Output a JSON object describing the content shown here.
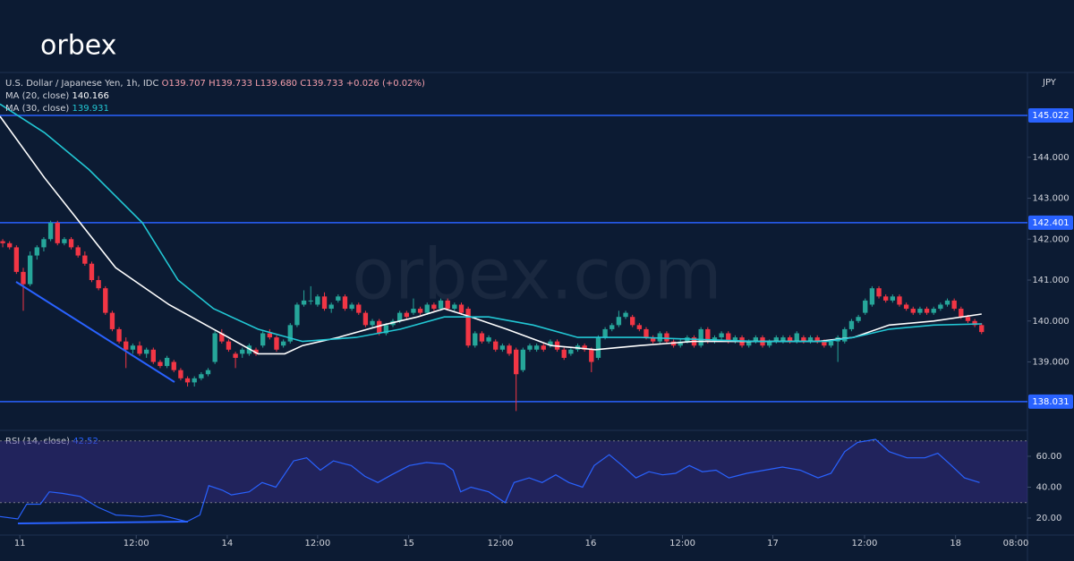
{
  "logo": "orbex",
  "watermark": "orbex.com",
  "chart_data": {
    "type": "candlestick",
    "symbol": "U.S. Dollar / Japanese Yen, 1h, IDC",
    "ohlc_labels": [
      "O139.707",
      "H139.733",
      "L139.680",
      "C139.733",
      "+0.026 (+0.02%)"
    ],
    "currency": "JPY",
    "up_color": "#26a69a",
    "down_color": "#f23645",
    "level_color": "#2962ff",
    "ylim": [
      137.35,
      146.05
    ],
    "yticks": [
      {
        "value": 139,
        "label": "139.000"
      },
      {
        "value": 140,
        "label": "140.000"
      },
      {
        "value": 141,
        "label": "141.000"
      },
      {
        "value": 142,
        "label": "142.000"
      },
      {
        "value": 143,
        "label": "143.000"
      },
      {
        "value": 144,
        "label": "144.000"
      }
    ],
    "levels": [
      145.022,
      142.401,
      138.031
    ],
    "xlim": [
      -0.4,
      149.7
    ],
    "xticks": [
      {
        "value": 2.5,
        "label": "11"
      },
      {
        "value": 19.5,
        "label": "12:00"
      },
      {
        "value": 32.8,
        "label": "14"
      },
      {
        "value": 46,
        "label": "12:00"
      },
      {
        "value": 59.3,
        "label": "15"
      },
      {
        "value": 72.7,
        "label": "12:00"
      },
      {
        "value": 85.9,
        "label": "16"
      },
      {
        "value": 99.3,
        "label": "12:00"
      },
      {
        "value": 112.5,
        "label": "17"
      },
      {
        "value": 125.9,
        "label": "12:00"
      },
      {
        "value": 139.2,
        "label": "18"
      },
      {
        "value": 148,
        "label": "08:00"
      }
    ],
    "candles": [
      [
        141.95,
        142.0,
        141.8,
        141.9
      ],
      [
        141.9,
        141.95,
        141.75,
        141.8
      ],
      [
        141.8,
        141.85,
        141.15,
        141.2
      ],
      [
        141.2,
        141.3,
        140.25,
        140.9
      ],
      [
        140.9,
        141.7,
        140.85,
        141.6
      ],
      [
        141.6,
        141.85,
        141.5,
        141.8
      ],
      [
        141.8,
        142.05,
        141.7,
        142.0
      ],
      [
        142.0,
        142.45,
        141.95,
        142.4
      ],
      [
        142.4,
        142.45,
        141.85,
        141.9
      ],
      [
        141.9,
        142.05,
        141.85,
        142.0
      ],
      [
        142.0,
        142.05,
        141.75,
        141.8
      ],
      [
        141.8,
        141.85,
        141.55,
        141.6
      ],
      [
        141.6,
        141.7,
        141.35,
        141.4
      ],
      [
        141.4,
        141.45,
        140.95,
        141.0
      ],
      [
        141.0,
        141.1,
        140.75,
        140.8
      ],
      [
        140.8,
        140.85,
        140.15,
        140.2
      ],
      [
        140.2,
        140.25,
        139.75,
        139.8
      ],
      [
        139.8,
        139.85,
        139.45,
        139.5
      ],
      [
        139.5,
        139.6,
        138.85,
        139.3
      ],
      [
        139.3,
        139.45,
        139.2,
        139.4
      ],
      [
        139.4,
        139.5,
        139.15,
        139.2
      ],
      [
        139.2,
        139.35,
        139.1,
        139.3
      ],
      [
        139.3,
        139.35,
        138.95,
        139.0
      ],
      [
        139.0,
        139.05,
        138.85,
        138.9
      ],
      [
        138.9,
        139.15,
        138.85,
        139.1
      ],
      [
        139.0,
        139.05,
        138.75,
        138.8
      ],
      [
        138.8,
        138.85,
        138.55,
        138.6
      ],
      [
        138.6,
        138.65,
        138.4,
        138.5
      ],
      [
        138.5,
        138.65,
        138.4,
        138.6
      ],
      [
        138.6,
        138.75,
        138.55,
        138.7
      ],
      [
        138.7,
        138.85,
        138.65,
        138.8
      ],
      [
        139.0,
        139.75,
        138.95,
        139.7
      ],
      [
        139.7,
        139.8,
        139.45,
        139.5
      ],
      [
        139.5,
        139.55,
        139.25,
        139.3
      ],
      [
        139.2,
        139.25,
        138.85,
        139.1
      ],
      [
        139.2,
        139.35,
        139.1,
        139.3
      ],
      [
        139.2,
        139.45,
        139.15,
        139.4
      ],
      [
        139.3,
        139.35,
        139.15,
        139.2
      ],
      [
        139.4,
        139.75,
        139.35,
        139.7
      ],
      [
        139.7,
        139.8,
        139.55,
        139.6
      ],
      [
        139.6,
        139.65,
        139.25,
        139.3
      ],
      [
        139.4,
        139.55,
        139.35,
        139.5
      ],
      [
        139.5,
        139.95,
        139.45,
        139.9
      ],
      [
        139.9,
        140.45,
        139.85,
        140.4
      ],
      [
        140.4,
        140.75,
        140.35,
        140.5
      ],
      [
        140.5,
        140.85,
        140.4,
        140.5
      ],
      [
        140.4,
        140.65,
        140.35,
        140.6
      ],
      [
        140.6,
        140.7,
        140.25,
        140.3
      ],
      [
        140.3,
        140.45,
        140.2,
        140.4
      ],
      [
        140.5,
        140.65,
        140.45,
        140.6
      ],
      [
        140.6,
        140.65,
        140.25,
        140.3
      ],
      [
        140.3,
        140.45,
        140.25,
        140.4
      ],
      [
        140.4,
        140.45,
        140.15,
        140.2
      ],
      [
        140.2,
        140.25,
        139.85,
        139.9
      ],
      [
        139.9,
        140.05,
        139.85,
        140.0
      ],
      [
        140.0,
        140.05,
        139.65,
        139.7
      ],
      [
        139.7,
        139.95,
        139.65,
        139.9
      ],
      [
        139.9,
        140.05,
        139.85,
        140.0
      ],
      [
        140.0,
        140.25,
        139.95,
        140.2
      ],
      [
        140.2,
        140.25,
        140.05,
        140.1
      ],
      [
        140.2,
        140.55,
        140.15,
        140.3
      ],
      [
        140.3,
        140.35,
        140.15,
        140.2
      ],
      [
        140.2,
        140.45,
        140.15,
        140.4
      ],
      [
        140.4,
        140.45,
        140.25,
        140.3
      ],
      [
        140.3,
        140.55,
        140.25,
        140.5
      ],
      [
        140.5,
        140.55,
        140.25,
        140.3
      ],
      [
        140.3,
        140.45,
        140.25,
        140.4
      ],
      [
        140.4,
        140.45,
        140.15,
        140.2
      ],
      [
        140.3,
        140.35,
        139.35,
        139.4
      ],
      [
        139.4,
        139.75,
        139.35,
        139.7
      ],
      [
        139.7,
        139.75,
        139.45,
        139.5
      ],
      [
        139.5,
        139.65,
        139.45,
        139.6
      ],
      [
        139.5,
        139.55,
        139.25,
        139.3
      ],
      [
        139.3,
        139.45,
        139.25,
        139.4
      ],
      [
        139.4,
        139.45,
        139.15,
        139.2
      ],
      [
        139.3,
        139.35,
        137.8,
        138.7
      ],
      [
        138.8,
        139.35,
        138.75,
        139.3
      ],
      [
        139.3,
        139.45,
        139.25,
        139.4
      ],
      [
        139.3,
        139.45,
        139.25,
        139.4
      ],
      [
        139.4,
        139.45,
        139.25,
        139.3
      ],
      [
        139.4,
        139.55,
        139.35,
        139.5
      ],
      [
        139.5,
        139.55,
        139.25,
        139.3
      ],
      [
        139.3,
        139.35,
        139.05,
        139.1
      ],
      [
        139.2,
        139.35,
        139.15,
        139.3
      ],
      [
        139.3,
        139.45,
        139.25,
        139.4
      ],
      [
        139.4,
        139.45,
        139.25,
        139.3
      ],
      [
        139.3,
        139.35,
        138.75,
        139.0
      ],
      [
        139.1,
        139.65,
        139.05,
        139.6
      ],
      [
        139.6,
        139.85,
        139.55,
        139.8
      ],
      [
        139.8,
        139.95,
        139.75,
        139.9
      ],
      [
        139.9,
        140.25,
        139.85,
        140.1
      ],
      [
        140.1,
        140.25,
        140.05,
        140.2
      ],
      [
        140.1,
        140.15,
        139.85,
        139.9
      ],
      [
        139.9,
        139.95,
        139.75,
        139.8
      ],
      [
        139.8,
        139.85,
        139.55,
        139.6
      ],
      [
        139.6,
        139.65,
        139.45,
        139.5
      ],
      [
        139.5,
        139.75,
        139.45,
        139.7
      ],
      [
        139.7,
        139.75,
        139.45,
        139.5
      ],
      [
        139.5,
        139.55,
        139.35,
        139.4
      ],
      [
        139.4,
        139.55,
        139.35,
        139.5
      ],
      [
        139.5,
        139.65,
        139.45,
        139.6
      ],
      [
        139.6,
        139.65,
        139.35,
        139.4
      ],
      [
        139.4,
        139.85,
        139.35,
        139.8
      ],
      [
        139.8,
        139.85,
        139.45,
        139.5
      ],
      [
        139.5,
        139.65,
        139.45,
        139.6
      ],
      [
        139.6,
        139.75,
        139.55,
        139.7
      ],
      [
        139.7,
        139.75,
        139.45,
        139.5
      ],
      [
        139.5,
        139.65,
        139.45,
        139.6
      ],
      [
        139.6,
        139.65,
        139.35,
        139.4
      ],
      [
        139.4,
        139.55,
        139.35,
        139.5
      ],
      [
        139.5,
        139.65,
        139.45,
        139.6
      ],
      [
        139.6,
        139.65,
        139.35,
        139.4
      ],
      [
        139.4,
        139.55,
        139.35,
        139.5
      ],
      [
        139.5,
        139.65,
        139.45,
        139.6
      ],
      [
        139.5,
        139.65,
        139.45,
        139.6
      ],
      [
        139.6,
        139.65,
        139.45,
        139.5
      ],
      [
        139.5,
        139.75,
        139.45,
        139.7
      ],
      [
        139.6,
        139.65,
        139.45,
        139.5
      ],
      [
        139.5,
        139.65,
        139.45,
        139.6
      ],
      [
        139.6,
        139.65,
        139.45,
        139.5
      ],
      [
        139.5,
        139.55,
        139.35,
        139.4
      ],
      [
        139.4,
        139.55,
        139.35,
        139.5
      ],
      [
        139.5,
        139.65,
        139.0,
        139.6
      ],
      [
        139.5,
        139.85,
        139.45,
        139.8
      ],
      [
        139.8,
        140.05,
        139.75,
        140.0
      ],
      [
        140.0,
        140.15,
        139.95,
        140.1
      ],
      [
        140.2,
        140.55,
        140.15,
        140.5
      ],
      [
        140.4,
        140.85,
        140.35,
        140.8
      ],
      [
        140.8,
        140.85,
        140.55,
        140.6
      ],
      [
        140.6,
        140.65,
        140.45,
        140.5
      ],
      [
        140.5,
        140.65,
        140.45,
        140.6
      ],
      [
        140.6,
        140.65,
        140.35,
        140.4
      ],
      [
        140.4,
        140.45,
        140.25,
        140.3
      ],
      [
        140.3,
        140.35,
        140.15,
        140.2
      ],
      [
        140.2,
        140.35,
        140.15,
        140.3
      ],
      [
        140.3,
        140.35,
        140.15,
        140.2
      ],
      [
        140.2,
        140.35,
        140.15,
        140.3
      ],
      [
        140.3,
        140.45,
        140.25,
        140.4
      ],
      [
        140.4,
        140.55,
        140.35,
        140.5
      ],
      [
        140.5,
        140.55,
        140.25,
        140.3
      ],
      [
        140.3,
        140.35,
        140.05,
        140.1
      ],
      [
        140.1,
        140.15,
        139.95,
        140.0
      ],
      [
        140.0,
        140.05,
        139.85,
        139.9
      ],
      [
        139.9,
        139.95,
        139.68,
        139.73
      ]
    ],
    "series": [
      {
        "name": "MA (20, close)",
        "last": 140.166,
        "color": "#ffffff",
        "x": [
          -0.4,
          6.1,
          11.3,
          16.5,
          24.3,
          30.8,
          37.3,
          41.2,
          43.8,
          49,
          55.5,
          60.6,
          64.5,
          68.4,
          73.6,
          80.1,
          86.6,
          93.1,
          100.9,
          110,
          119.1,
          124.3,
          129.5,
          136,
          143
        ],
        "values": [
          145.0,
          143.5,
          142.4,
          141.3,
          140.4,
          139.8,
          139.2,
          139.2,
          139.4,
          139.6,
          139.9,
          140.1,
          140.3,
          140.1,
          139.8,
          139.4,
          139.3,
          139.4,
          139.5,
          139.5,
          139.5,
          139.6,
          139.9,
          140.0,
          140.17
        ]
      },
      {
        "name": "MA (30, close)",
        "last": 139.931,
        "color": "#22c7d4",
        "x": [
          -0.4,
          6.1,
          12.6,
          20.4,
          25.6,
          30.8,
          37.3,
          43.8,
          51.6,
          58.1,
          64.5,
          71,
          77.5,
          84,
          93.1,
          110,
          120.4,
          124.3,
          129.5,
          136,
          143
        ],
        "values": [
          145.3,
          144.6,
          143.7,
          142.4,
          141.0,
          140.3,
          139.8,
          139.5,
          139.6,
          139.8,
          140.1,
          140.1,
          139.9,
          139.6,
          139.6,
          139.5,
          139.5,
          139.6,
          139.8,
          139.9,
          139.93
        ]
      }
    ],
    "rsi": {
      "name": "RSI (14, close)",
      "last": 42.52,
      "color": "#2962ff",
      "band_color": "#3b2f8f",
      "ylim": [
        9,
        76.2
      ],
      "bands": [
        30,
        70
      ],
      "yticks": [
        {
          "value": 20,
          "label": "20.00"
        },
        {
          "value": 40,
          "label": "40.00"
        },
        {
          "value": 60,
          "label": "60.00"
        }
      ],
      "x": [
        -0.4,
        2.2,
        3.5,
        5.5,
        6.8,
        8.7,
        11.3,
        13.9,
        16.5,
        20.4,
        23,
        26.9,
        28.8,
        30.1,
        32.1,
        33.4,
        36,
        37.9,
        39.9,
        42.5,
        44.4,
        46.4,
        48.3,
        50.9,
        52.9,
        54.8,
        56.8,
        59.4,
        61.9,
        64.5,
        65.8,
        66.9,
        68.4,
        71,
        73.4,
        74.7,
        76.9,
        78.8,
        80.8,
        82.7,
        84.7,
        86.4,
        88.6,
        90.5,
        92.5,
        94.4,
        96.4,
        98.3,
        100.3,
        102.2,
        104.2,
        106.1,
        108.7,
        111.3,
        113.9,
        116.5,
        119.1,
        121,
        123,
        124.9,
        127.5,
        129.5,
        132.1,
        134.7,
        136.6,
        138.6,
        140.5,
        142.7
      ],
      "values": [
        21,
        19.4,
        29,
        29,
        37,
        36,
        34,
        27,
        22,
        21,
        22,
        17.7,
        22,
        41,
        38,
        35,
        37,
        43,
        40,
        57,
        59,
        51,
        57,
        54,
        47,
        43,
        48,
        54,
        56,
        55,
        51,
        37,
        40,
        37,
        30,
        43,
        46,
        43,
        48,
        43,
        40,
        54,
        61,
        54,
        46,
        50,
        48,
        49,
        54,
        50,
        51,
        46,
        49,
        51,
        53,
        51,
        46,
        49,
        63,
        69,
        71,
        63,
        59,
        59,
        62,
        54,
        46,
        43
      ]
    }
  }
}
